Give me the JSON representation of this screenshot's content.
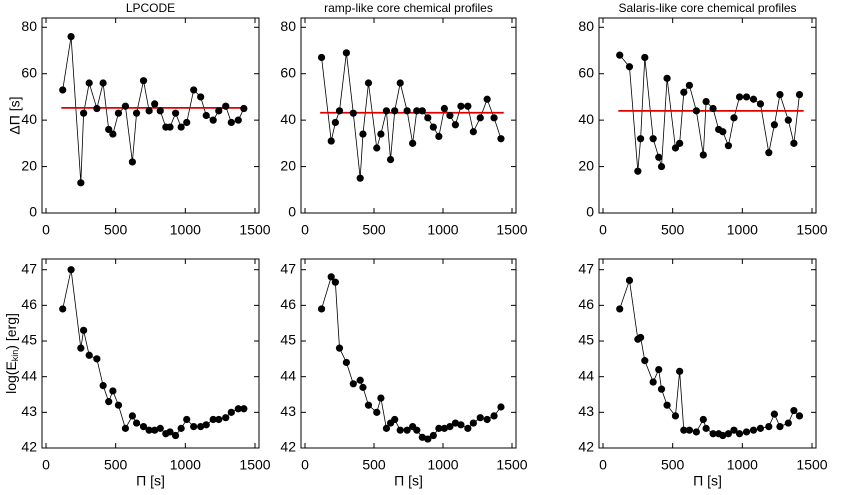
{
  "chart_data": [
    {
      "type": "line",
      "title": "LPCODE",
      "ylabel": "ΔΠ [s]",
      "color": "#000000",
      "x": [
        120,
        180,
        250,
        270,
        310,
        365,
        410,
        450,
        480,
        520,
        570,
        620,
        650,
        700,
        740,
        780,
        820,
        860,
        890,
        930,
        970,
        1010,
        1060,
        1110,
        1150,
        1200,
        1240,
        1290,
        1330,
        1380,
        1420
      ],
      "values": [
        53,
        76,
        13,
        43,
        56,
        45,
        56,
        36,
        34,
        43,
        46,
        22,
        43,
        57,
        44,
        47,
        44,
        37,
        37,
        43,
        37,
        39,
        53,
        50,
        42,
        40,
        44,
        46,
        39,
        40,
        45
      ],
      "reference_line": {
        "y": 45.3,
        "x": [
          110,
          1440
        ],
        "color": "#e00000"
      },
      "xlim": [
        0,
        1500
      ],
      "xticks": [
        0,
        500,
        1000,
        1500
      ],
      "ylim": [
        0,
        84
      ],
      "yticks": [
        0,
        20,
        40,
        60,
        80
      ]
    },
    {
      "type": "line",
      "title": "ramp-like core chemical profiles",
      "color": "#000000",
      "x": [
        120,
        190,
        220,
        250,
        300,
        350,
        400,
        420,
        460,
        520,
        550,
        590,
        620,
        650,
        690,
        740,
        780,
        810,
        850,
        890,
        930,
        970,
        1010,
        1050,
        1090,
        1130,
        1180,
        1220,
        1270,
        1320,
        1370,
        1420
      ],
      "values": [
        67,
        31,
        39,
        44,
        69,
        43,
        15,
        34,
        56,
        28,
        34,
        44,
        23,
        44,
        56,
        44,
        30,
        44,
        44,
        41,
        37,
        33,
        45,
        42,
        38,
        46,
        46,
        35,
        41,
        49,
        41,
        32
      ],
      "reference_line": {
        "y": 43.2,
        "x": [
          110,
          1440
        ],
        "color": "#e00000"
      },
      "xlim": [
        0,
        1500
      ],
      "xticks": [
        0,
        500,
        1000,
        1500
      ],
      "ylim": [
        0,
        84
      ],
      "yticks": [
        0,
        20,
        40,
        60,
        80
      ]
    },
    {
      "type": "line",
      "title": "Salaris-like core chemical profiles",
      "color": "#000000",
      "x": [
        120,
        190,
        250,
        270,
        300,
        360,
        400,
        420,
        460,
        520,
        550,
        580,
        620,
        670,
        720,
        740,
        790,
        830,
        860,
        900,
        940,
        980,
        1030,
        1080,
        1130,
        1190,
        1230,
        1270,
        1330,
        1370,
        1410
      ],
      "values": [
        68,
        63,
        18,
        32,
        67,
        32,
        24,
        20,
        58,
        28,
        30,
        52,
        55,
        44,
        25,
        48,
        45,
        36,
        35,
        29,
        41,
        50,
        50,
        49,
        47,
        26,
        38,
        51,
        40,
        30,
        51
      ],
      "reference_line": {
        "y": 44.0,
        "x": [
          110,
          1440
        ],
        "color": "#e00000"
      },
      "xlim": [
        0,
        1500
      ],
      "xticks": [
        0,
        500,
        1000,
        1500
      ],
      "ylim": [
        0,
        84
      ],
      "yticks": [
        0,
        20,
        40,
        60,
        80
      ]
    },
    {
      "type": "line",
      "ylabel": [
        "log(E",
        "kin",
        ") [erg]"
      ],
      "xlabel": "Π [s]",
      "color": "#000000",
      "x": [
        120,
        180,
        250,
        270,
        310,
        365,
        410,
        450,
        480,
        520,
        570,
        620,
        650,
        700,
        740,
        780,
        820,
        860,
        890,
        930,
        970,
        1010,
        1060,
        1110,
        1150,
        1200,
        1240,
        1290,
        1330,
        1380,
        1420
      ],
      "values": [
        45.9,
        47.0,
        44.8,
        45.3,
        44.6,
        44.5,
        43.75,
        43.3,
        43.6,
        43.2,
        42.55,
        42.9,
        42.7,
        42.6,
        42.5,
        42.5,
        42.55,
        42.4,
        42.45,
        42.35,
        42.55,
        42.8,
        42.6,
        42.6,
        42.65,
        42.8,
        42.8,
        42.85,
        43.0,
        43.1,
        43.1
      ],
      "xlim": [
        0,
        1500
      ],
      "xticks": [
        0,
        500,
        1000,
        1500
      ],
      "ylim": [
        42,
        47.3
      ],
      "yticks": [
        42,
        43,
        44,
        45,
        46,
        47
      ]
    },
    {
      "type": "line",
      "xlabel": "Π [s]",
      "color": "#000000",
      "x": [
        120,
        190,
        220,
        250,
        300,
        350,
        400,
        420,
        460,
        520,
        550,
        590,
        620,
        650,
        690,
        740,
        780,
        810,
        850,
        890,
        930,
        970,
        1010,
        1050,
        1090,
        1130,
        1180,
        1220,
        1270,
        1320,
        1370,
        1420
      ],
      "values": [
        45.9,
        46.8,
        46.65,
        44.8,
        44.4,
        43.8,
        43.9,
        43.7,
        43.2,
        43.0,
        43.4,
        42.55,
        42.7,
        42.8,
        42.5,
        42.5,
        42.6,
        42.5,
        42.3,
        42.25,
        42.35,
        42.55,
        42.55,
        42.6,
        42.7,
        42.65,
        42.55,
        42.7,
        42.85,
        42.8,
        42.9,
        43.15
      ],
      "xlim": [
        0,
        1500
      ],
      "xticks": [
        0,
        500,
        1000,
        1500
      ],
      "ylim": [
        42,
        47.3
      ],
      "yticks": [
        42,
        43,
        44,
        45,
        46,
        47
      ]
    },
    {
      "type": "line",
      "xlabel": "Π [s]",
      "color": "#000000",
      "x": [
        120,
        190,
        250,
        270,
        300,
        360,
        400,
        420,
        460,
        520,
        550,
        580,
        620,
        670,
        720,
        740,
        790,
        830,
        860,
        900,
        940,
        980,
        1030,
        1080,
        1130,
        1190,
        1230,
        1270,
        1330,
        1370,
        1410
      ],
      "values": [
        45.9,
        46.7,
        45.05,
        45.1,
        44.45,
        43.85,
        44.2,
        43.65,
        43.2,
        42.9,
        44.15,
        42.5,
        42.5,
        42.45,
        42.8,
        42.55,
        42.4,
        42.4,
        42.35,
        42.4,
        42.5,
        42.4,
        42.45,
        42.5,
        42.55,
        42.6,
        42.95,
        42.6,
        42.7,
        43.05,
        42.9
      ],
      "xlim": [
        0,
        1500
      ],
      "xticks": [
        0,
        500,
        1000,
        1500
      ],
      "ylim": [
        42,
        47.3
      ],
      "yticks": [
        42,
        43,
        44,
        45,
        46,
        47
      ]
    }
  ]
}
